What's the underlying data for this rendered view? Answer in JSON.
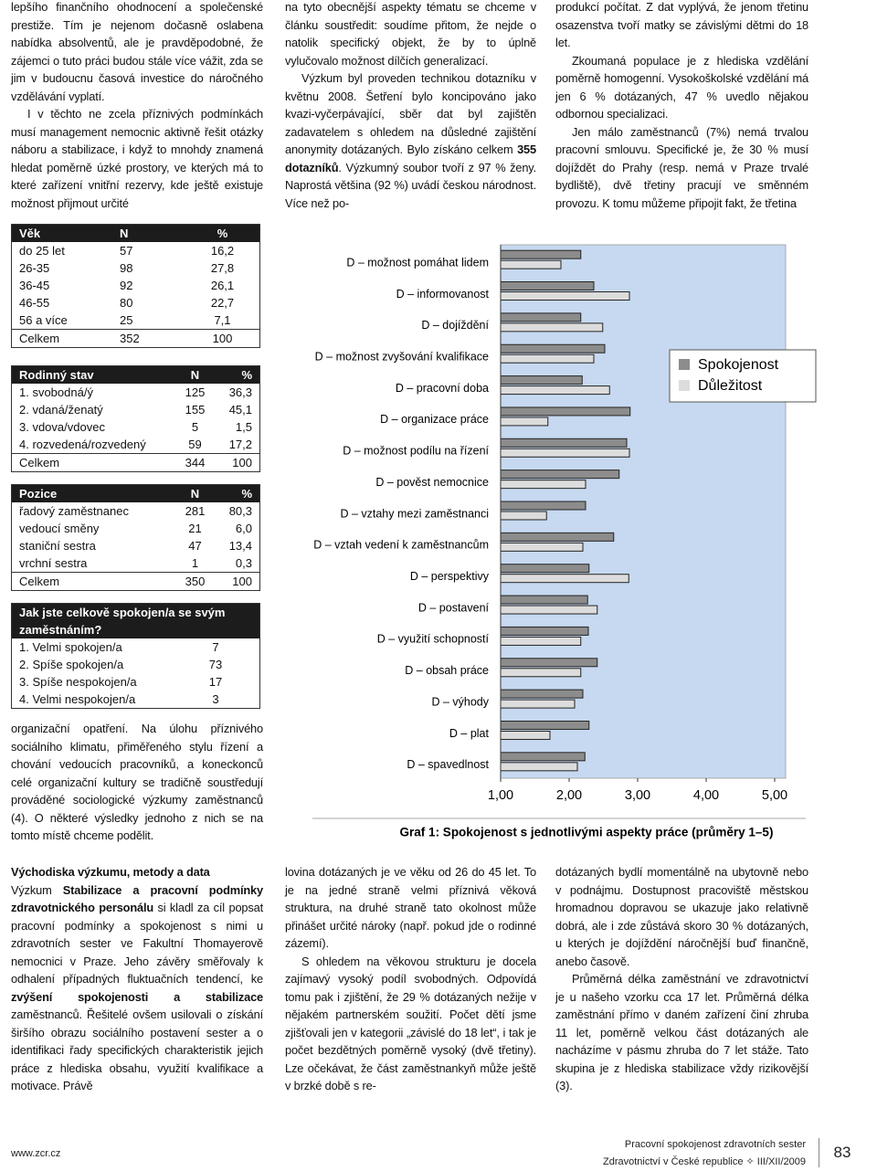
{
  "top_columns": [
    [
      [
        "lepšího finančního ohodnocení a společenské prestiže. Tím je nejenom dočasně oslabena nabídka absolventů, ale je pravděpodobné, že zájemci o tuto práci budou stále více vážit, zda se jim v budoucnu časová investice do náročného vzdělávání vyplatí."
      ],
      [
        "I v těchto ne zcela příznivých podmínkách musí management nemocnic aktivně řešit otázky náboru a stabilizace, i když to mnohdy znamená hledat poměrně úzké prostory, ve kterých má to které zařízení vnitřní rezervy, kde ještě existuje možnost přijmout určité"
      ]
    ],
    [
      [
        "na tyto obecnější aspekty tématu se chceme v článku soustředit: soudíme přitom, že nejde o natolik specifický objekt, že by to úplně vylučovalo možnost dílčích generalizací."
      ],
      [
        "Výzkum byl proveden technikou dotazníku v květnu 2008. Šetření bylo koncipováno jako kvazi-vyčerpávající, sběr dat byl zajištěn zadavatelem s ohledem na důsledné zajištění anonymity dotázaných. Bylo získáno celkem ",
        {
          "text": "355 dotazníků",
          "bold": true
        },
        ". Výzkumný soubor tvoří z 97 % ženy. Naprostá většina (92 %) uvádí českou národnost. Více než po-"
      ]
    ],
    [
      [
        "produkcí počítat. Z dat vyplývá, že jenom třetinu osazenstva tvoří matky se závislými dětmi do 18 let."
      ],
      [
        "Zkoumaná populace je z hlediska vzdělání poměrně homogenní. Vysokoškolské vzdělání má jen 6 % dotázaných, 47 % uvedlo nějakou odbornou specializaci."
      ],
      [
        "Jen málo zaměstnanců (7%) nemá trvalou pracovní smlouvu. Specifické je, že 30 % musí dojíždět do Prahy (resp. nemá v Praze trvalé bydliště), dvě třetiny pracují ve směnném provozu. K tomu můžeme připojit fakt, že třetina"
      ]
    ]
  ],
  "tables": [
    {
      "header": [
        "Věk",
        "N",
        "%"
      ],
      "rows": [
        [
          "do 25 let",
          "57",
          "16,2"
        ],
        [
          "26-35",
          "98",
          "27,8"
        ],
        [
          "36-45",
          "92",
          "26,1"
        ],
        [
          "46-55",
          "80",
          "22,7"
        ],
        [
          "56 a více",
          "25",
          "7,1"
        ],
        [
          "Celkem",
          "352",
          "100"
        ]
      ]
    },
    {
      "header": [
        "Rodinný stav",
        "N",
        "%"
      ],
      "rows": [
        [
          "1. svobodná/ý",
          "125",
          "36,3"
        ],
        [
          "2. vdaná/ženatý",
          "155",
          "45,1"
        ],
        [
          "3. vdova/vdovec",
          "5",
          "1,5"
        ],
        [
          "4. rozvedená/rozvedený",
          "59",
          "17,2"
        ],
        [
          "Celkem",
          "344",
          "100"
        ]
      ]
    },
    {
      "header": [
        "Pozice",
        "N",
        "%"
      ],
      "rows": [
        [
          "řadový zaměstnanec",
          "281",
          "80,3"
        ],
        [
          "vedoucí směny",
          "21",
          "6,0"
        ],
        [
          "staniční sestra",
          "47",
          "13,4"
        ],
        [
          "vrchní sestra",
          "1",
          "0,3"
        ],
        [
          "Celkem",
          "350",
          "100"
        ]
      ]
    },
    {
      "header": [
        "Jak jste celkově spokojen/a se svým zaměstnáním?"
      ],
      "rows": [
        [
          "1. Velmi spokojen/a",
          "7"
        ],
        [
          "2. Spíše spokojen/a",
          "73"
        ],
        [
          "3. Spíše nespokojen/a",
          "17"
        ],
        [
          "4. Velmi nespokojen/a",
          "3"
        ]
      ]
    }
  ],
  "left_after_tables": [
    [
      "organizační opatření. Na úlohu příznivého sociálního klimatu, přiměřeného stylu řízení a chování vedoucích pracovníků, a koneckonců celé organizační kultury se tradičně soustředují prováděné sociologické výzkumy zaměstnanců (4). O některé výsledky jednoho z nich se na tomto místě chceme podělit."
    ]
  ],
  "chart_data": {
    "type": "barh",
    "title": "Graf 1: Spokojenost s jednotlivými aspekty práce (průměry 1–5)",
    "categories": [
      "D – možnost pomáhat lidem",
      "D – informovanost",
      "D – dojíždění",
      "D – možnost zvyšování kvalifikace",
      "D – pracovní doba",
      "D – organizace práce",
      "D – možnost podílu na řízení",
      "D – pověst nemocnice",
      "D – vztahy mezi zaměstnanci",
      "D – vztah vedení k zaměstnancům",
      "D – perspektivy",
      "D – postavení",
      "D – využití schopností",
      "D – obsah práce",
      "D – výhody",
      "D – plat",
      "D – spavedlnost"
    ],
    "series": [
      {
        "name": "Spokojenost",
        "color": "#8c8c8c",
        "values": [
          2.17,
          2.36,
          2.17,
          2.52,
          2.19,
          2.89,
          2.84,
          2.73,
          2.24,
          2.65,
          2.29,
          2.27,
          2.28,
          2.41,
          2.2,
          2.29,
          2.23
        ]
      },
      {
        "name": "Důležitost",
        "color": "#dcdcdc",
        "values": [
          1.88,
          2.88,
          2.49,
          2.36,
          2.59,
          1.69,
          2.88,
          2.24,
          1.67,
          2.2,
          2.87,
          2.41,
          2.17,
          2.17,
          2.08,
          1.72,
          2.12
        ]
      }
    ],
    "xlim": [
      1,
      5
    ],
    "xticks": [
      {
        "value": 1,
        "label": "1,00"
      },
      {
        "value": 2,
        "label": "2,00"
      },
      {
        "value": 3,
        "label": "3,00"
      },
      {
        "value": 4,
        "label": "4,00"
      },
      {
        "value": 5,
        "label": "5,00"
      }
    ],
    "plot_background": "#c6d9f1"
  },
  "bottom_heading": "Východiska výzkumu, metody a data",
  "bottom_columns": [
    [
      [
        "Výzkum ",
        {
          "text": "Stabilizace a pracovní podmínky zdravotnického personálu",
          "bold": true
        },
        " si kladl za cíl popsat pracovní podmínky a spokojenost s nimi u zdravotních sester ve Fakultní Thomayerově nemocnici v Praze. Jeho závěry směřovaly k odhalení případných fluktuačních tendencí, ke ",
        {
          "text": "zvýšení spokojenosti a stabilizace",
          "bold": true
        },
        " zaměstnanců. Řešitelé ovšem usilovali o získání širšího obrazu sociálního postavení sester a o identifikaci řady specifických charakteristik jejich práce z hlediska obsahu, využití kvalifikace a motivace. Právě"
      ]
    ],
    [
      [
        "lovina dotázaných je ve věku od 26 do 45 let. To je na jedné straně velmi příznivá věková struktura, na druhé straně tato okolnost může přinášet určité nároky (např. pokud jde o rodinné zázemí)."
      ],
      [
        "S ohledem na věkovou strukturu je docela zajímavý vysoký podíl svobodných. Odpovídá tomu pak i zjištění, že 29 % dotázaných nežije v nějakém partnerském soužití. Počet dětí jsme zjišťovali jen v kategorii „závislé do 18 let“, i tak je počet bezdětných poměrně vysoký (dvě třetiny). Lze očekávat, že část zaměstnankyň může ještě v brzké době s re-"
      ]
    ],
    [
      [
        "dotázaných bydlí momentálně na ubytovně nebo v podnájmu. Dostupnost pracoviště městskou hromadnou dopravou se ukazuje jako relativně dobrá, ale i zde zůstává skoro 30 % dotázaných, u kterých je dojíždění náročnější buď finančně, anebo časově."
      ],
      [
        "Průměrná délka zaměstnání ve zdravotnictví je u našeho vzorku cca 17 let. Průměrná délka zaměstnání přímo v daném zařízení činí zhruba 11 let, poměrně velkou část dotázaných ale nacházíme v pásmu zhruba do 7 let stáže. Tato skupina je z hlediska stabilizace vždy rizikovější (3)."
      ]
    ]
  ],
  "footer": {
    "site": "www.zcr.cz",
    "running_title": "Pracovní spokojenost zdravotních sester",
    "journal": "Zdravotnictví v České republice ✧ III/XII/2009",
    "page": "83"
  }
}
